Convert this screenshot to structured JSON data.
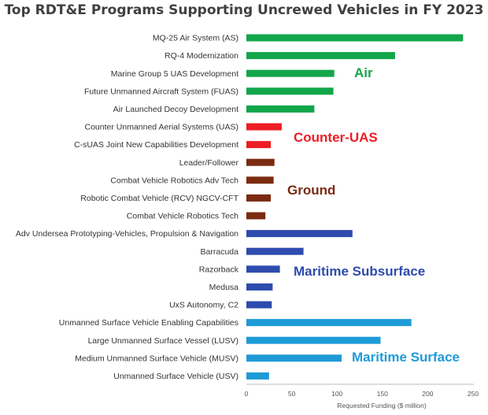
{
  "chart_data": {
    "type": "bar",
    "orientation": "horizontal",
    "title": "Top RDT&E Programs Supporting Uncrewed Vehicles in FY 2023",
    "xlabel": "Requested Funding ($ million)",
    "ylabel": "",
    "xlim": [
      0,
      250
    ],
    "xticks": [
      0,
      50,
      100,
      150,
      200,
      250
    ],
    "grid": false,
    "legend": "none",
    "groups": [
      {
        "name": "Air",
        "color": "#12A64A"
      },
      {
        "name": "Counter-UAS",
        "color": "#EE1C24"
      },
      {
        "name": "Ground",
        "color": "#7B2A10"
      },
      {
        "name": "Maritime Subsurface",
        "color": "#2E4BAE"
      },
      {
        "name": "Maritime Surface",
        "color": "#1E9BD7"
      }
    ],
    "bars": [
      {
        "label": "MQ-25 Air System (AS)",
        "value": 239,
        "group": 0
      },
      {
        "label": "RQ-4 Modernization",
        "value": 164,
        "group": 0
      },
      {
        "label": "Marine Group 5 UAS Development",
        "value": 97,
        "group": 0
      },
      {
        "label": "Future Unmanned Aircraft System (FUAS)",
        "value": 96,
        "group": 0
      },
      {
        "label": "Air Launched Decoy Development",
        "value": 75,
        "group": 0
      },
      {
        "label": "Counter Unmanned Aerial Systems (UAS)",
        "value": 39,
        "group": 1
      },
      {
        "label": "C-sUAS Joint New Capabilities Development",
        "value": 27,
        "group": 1
      },
      {
        "label": "Leader/Follower",
        "value": 31,
        "group": 2
      },
      {
        "label": "Combat Vehicle Robotics Adv Tech",
        "value": 30,
        "group": 2
      },
      {
        "label": "Robotic Combat Vehicle (RCV) NGCV-CFT",
        "value": 27,
        "group": 2
      },
      {
        "label": "Combat Vehicle Robotics Tech",
        "value": 21,
        "group": 2
      },
      {
        "label": "Adv Undersea Prototyping-Vehicles, Propulsion & Navigation",
        "value": 117,
        "group": 3
      },
      {
        "label": "Barracuda",
        "value": 63,
        "group": 3
      },
      {
        "label": "Razorback",
        "value": 37,
        "group": 3
      },
      {
        "label": "Medusa",
        "value": 29,
        "group": 3
      },
      {
        "label": "UxS Autonomy, C2",
        "value": 28,
        "group": 3
      },
      {
        "label": "Unmanned Surface Vehicle Enabling Capabilities",
        "value": 182,
        "group": 4
      },
      {
        "label": "Large Unmanned Surface Vessel (LUSV)",
        "value": 148,
        "group": 4
      },
      {
        "label": "Medium Unmanned Surface Vehicle (MUSV)",
        "value": 105,
        "group": 4
      },
      {
        "label": "Unmanned Surface Vehicle (USV)",
        "value": 25,
        "group": 4
      }
    ]
  }
}
